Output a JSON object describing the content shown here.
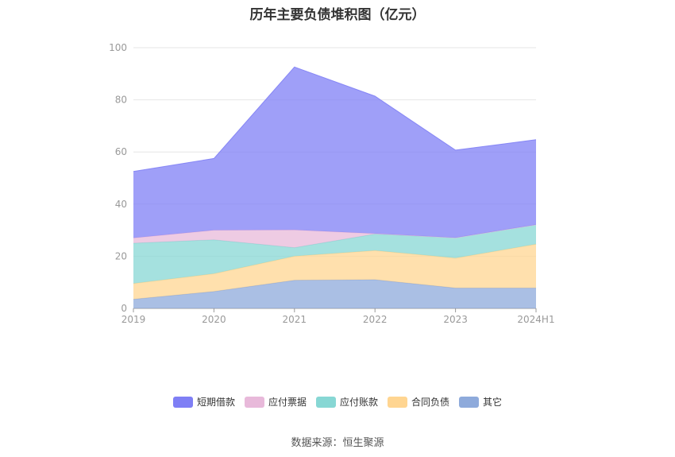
{
  "title": "历年主要负债堆积图（亿元）",
  "source": "数据来源：恒生聚源",
  "chart_data": {
    "type": "area",
    "stacked": true,
    "categories": [
      "2019",
      "2020",
      "2021",
      "2022",
      "2023",
      "2024H1"
    ],
    "ylim": [
      0,
      100
    ],
    "yticks": [
      0,
      20,
      40,
      60,
      80,
      100
    ],
    "grid": true,
    "legend_position": "bottom",
    "series": [
      {
        "name": "其它",
        "color": "#8eaadb",
        "values": [
          3.5,
          6.5,
          10.8,
          11.0,
          7.8,
          7.8
        ]
      },
      {
        "name": "合同负债",
        "color": "#ffd591",
        "values": [
          6.0,
          6.8,
          9.2,
          11.2,
          11.5,
          16.8
        ]
      },
      {
        "name": "应付账款",
        "color": "#87d7d4",
        "values": [
          15.5,
          13.0,
          3.3,
          6.3,
          7.8,
          7.5
        ]
      },
      {
        "name": "应付票据",
        "color": "#e8b9da",
        "values": [
          2.0,
          3.7,
          6.8,
          0.2,
          0.0,
          0.0
        ]
      },
      {
        "name": "短期借款",
        "color": "#7f7ff5",
        "values": [
          25.5,
          27.5,
          62.5,
          52.7,
          33.6,
          32.6
        ]
      }
    ]
  },
  "legend": [
    {
      "name": "短期借款",
      "color": "#7f7ff5"
    },
    {
      "name": "应付票据",
      "color": "#e8b9da"
    },
    {
      "name": "应付账款",
      "color": "#87d7d4"
    },
    {
      "name": "合同负债",
      "color": "#ffd591"
    },
    {
      "name": "其它",
      "color": "#8eaadb"
    }
  ]
}
